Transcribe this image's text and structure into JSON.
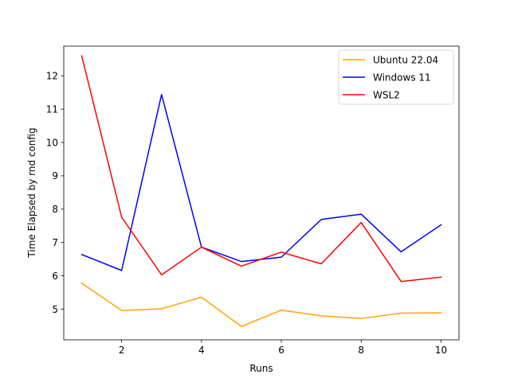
{
  "chart_data": {
    "type": "line",
    "title": "",
    "xlabel": "Runs",
    "ylabel": "Time Elapsed by rnd config",
    "xlim": [
      0.55,
      10.45
    ],
    "ylim": [
      4.08,
      12.89
    ],
    "xticks": [
      2,
      4,
      6,
      8,
      10
    ],
    "yticks": [
      5,
      6,
      7,
      8,
      9,
      10,
      11,
      12
    ],
    "grid": false,
    "legend_position": "top-right",
    "x": [
      1,
      2,
      3,
      4,
      5,
      6,
      7,
      8,
      9,
      10
    ],
    "series": [
      {
        "name": "Ubuntu 22.04",
        "color": "#FFA500",
        "values": [
          5.78,
          4.96,
          5.01,
          5.36,
          4.48,
          4.97,
          4.8,
          4.72,
          4.88,
          4.89
        ]
      },
      {
        "name": "Windows 11",
        "color": "#0000FF",
        "values": [
          6.64,
          6.16,
          11.44,
          6.86,
          6.43,
          6.56,
          7.69,
          7.85,
          6.72,
          7.53
        ]
      },
      {
        "name": "WSL2",
        "color": "#FF0000",
        "values": [
          12.6,
          7.76,
          6.03,
          6.86,
          6.29,
          6.71,
          6.36,
          7.6,
          5.83,
          5.96
        ]
      }
    ]
  }
}
